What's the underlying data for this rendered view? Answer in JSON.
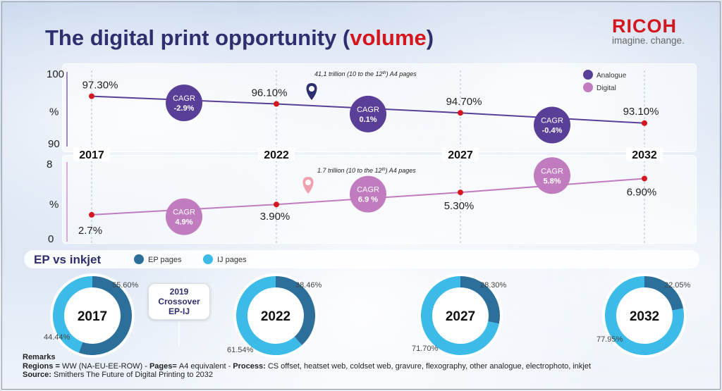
{
  "title": {
    "main": "The digital print opportunity (",
    "highlight": "volume",
    "end": ")"
  },
  "logo": {
    "word": "RICOH",
    "tagline": "imagine. change."
  },
  "colors": {
    "analogue": "#5a3f98",
    "digital": "#c07cbf",
    "ep": "#2c6f9a",
    "ij": "#3cbbe8",
    "marker": "#d4161e",
    "title": "#2e2f6e"
  },
  "chart_data": [
    {
      "type": "line",
      "name": "analogue",
      "x": [
        "2017",
        "2022",
        "2027",
        "2032"
      ],
      "values": [
        97.3,
        96.1,
        94.7,
        93.1
      ],
      "value_labels": [
        "97.30%",
        "96.10%",
        "94.70%",
        "93.10%"
      ],
      "ylim": [
        90,
        100
      ],
      "ytick_labels": [
        "100",
        "%",
        "90"
      ],
      "cagr": [
        {
          "label": "CAGR",
          "value": "-2.9%"
        },
        {
          "label": "CAGR",
          "value": "0.1%"
        },
        {
          "label": "CAGR",
          "value": "-0.4%"
        }
      ],
      "annotation": {
        "text": "41,1 trillion (10 to the 12",
        "sup": "th",
        "text_end": ") A4 pages",
        "at": "2022"
      },
      "legend": [
        "Analogue",
        "Digital"
      ]
    },
    {
      "type": "line",
      "name": "digital",
      "x": [
        "2017",
        "2022",
        "2027",
        "2032"
      ],
      "values": [
        2.7,
        3.9,
        5.3,
        6.9
      ],
      "value_labels": [
        "2.7%",
        "3.90%",
        "5.30%",
        "6.90%"
      ],
      "ylim": [
        0,
        8
      ],
      "ytick_labels": [
        "8",
        "%",
        "0"
      ],
      "cagr": [
        {
          "label": "CAGR",
          "value": "4.9%"
        },
        {
          "label": "CAGR",
          "value": "6.9 %"
        },
        {
          "label": "CAGR",
          "value": "5.8%"
        }
      ],
      "annotation": {
        "text": "1.7 trillion (10 to the 12",
        "sup": "th",
        "text_end": ") A4 pages",
        "at": "2022"
      }
    },
    {
      "type": "pie",
      "name": "ep-vs-inkjet",
      "title": "EP vs inkjet",
      "legend": [
        "EP pages",
        "IJ pages"
      ],
      "donuts": [
        {
          "year": "2017",
          "ep": 55.6,
          "ij": 44.44,
          "ep_label": "55.60%",
          "ij_label": "44.44%"
        },
        {
          "year": "2022",
          "ep": 38.46,
          "ij": 61.54,
          "ep_label": "38.46%",
          "ij_label": "61.54%"
        },
        {
          "year": "2027",
          "ep": 28.3,
          "ij": 71.7,
          "ep_label": "28.30%",
          "ij_label": "71.70%"
        },
        {
          "year": "2032",
          "ep": 22.05,
          "ij": 77.95,
          "ep_label": "22.05%",
          "ij_label": "77.95%"
        }
      ]
    }
  ],
  "crossover": {
    "line1": "2019",
    "line2": "Crossover",
    "line3": "EP-IJ"
  },
  "remarks": {
    "heading": "Remarks",
    "regions_label": "Regions = ",
    "regions_value": "WW (NA-EU-EE-ROW) - ",
    "pages_label": "Pages= ",
    "pages_value": "A4 equivalent - ",
    "process_label": "Process: ",
    "process_value": "CS offset, heatset web, coldset web, gravure, flexography, other analogue, electrophoto, inkjet",
    "source_label": "Source: ",
    "source_value": "Smithers The Future of Digital Printing to 2032"
  }
}
